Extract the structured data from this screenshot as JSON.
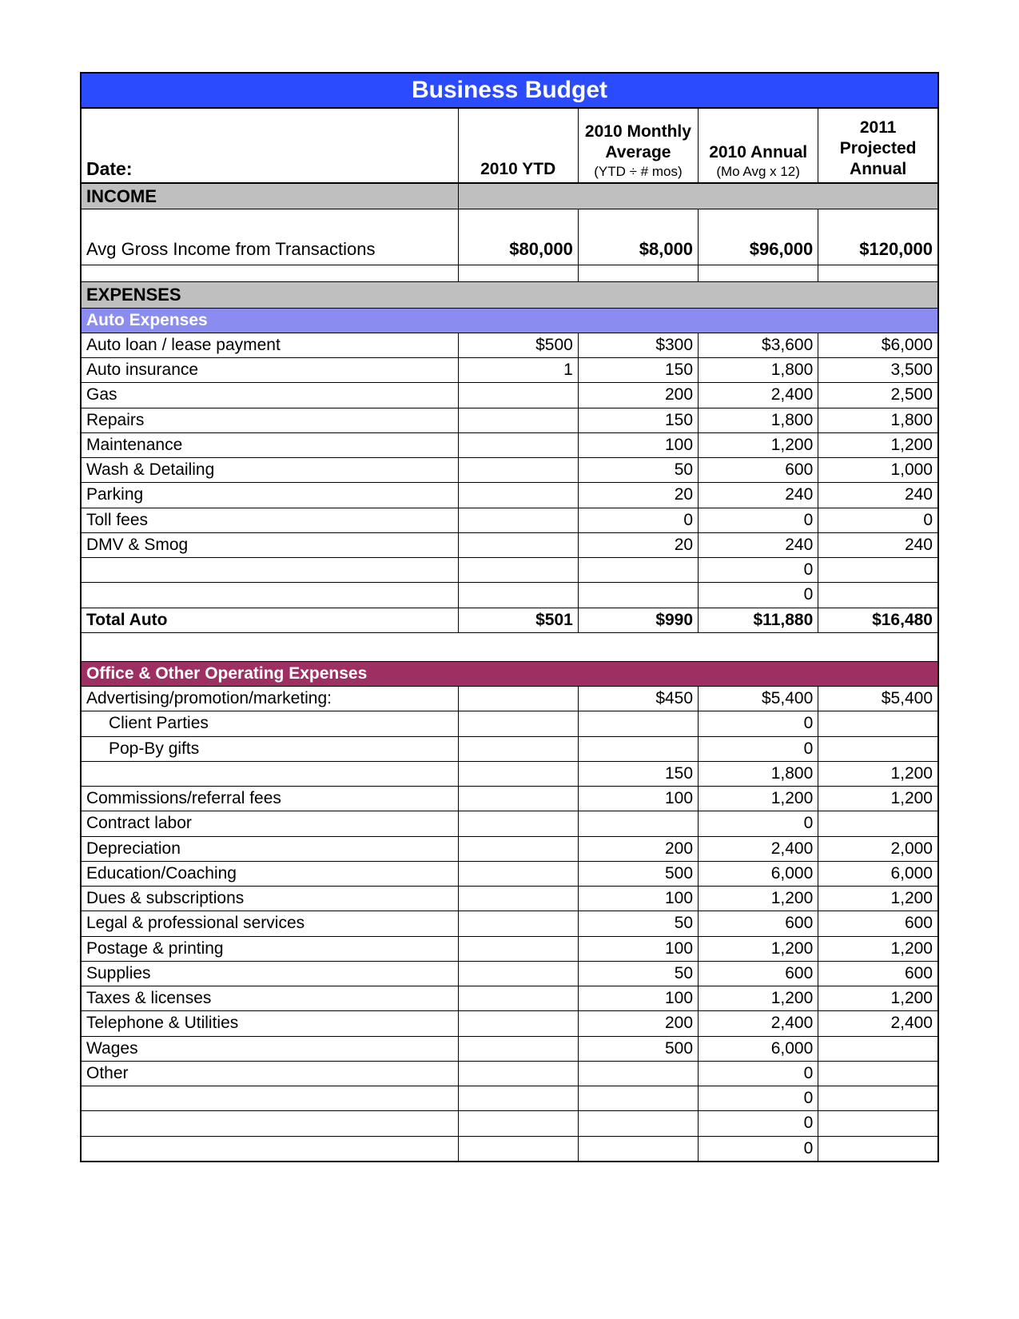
{
  "colors": {
    "title_bg": "#2b4bff",
    "title_text": "#ffffff",
    "section_grey": "#bfbfbf",
    "section_blue": "#8b8cf0",
    "section_maroon": "#9d2f62",
    "border": "#000000",
    "page_bg": "#ffffff"
  },
  "title": "Business Budget",
  "headers": {
    "date": "Date:",
    "col1": "2010 YTD",
    "col2_main": "2010 Monthly Average",
    "col2_sub": "(YTD ÷ # mos)",
    "col3_main": "2010 Annual",
    "col3_sub": "(Mo Avg x 12)",
    "col4": "2011 Projected Annual"
  },
  "income": {
    "section_label": "INCOME",
    "row_label": "Avg Gross Income from Transactions",
    "values": [
      "$80,000",
      "$8,000",
      "$96,000",
      "$120,000"
    ]
  },
  "expenses": {
    "section_label": "EXPENSES",
    "auto": {
      "section_label": "Auto Expenses",
      "rows": [
        {
          "label": "Auto loan / lease payment",
          "v": [
            "$500",
            "$300",
            "$3,600",
            "$6,000"
          ]
        },
        {
          "label": "Auto insurance",
          "v": [
            "1",
            "150",
            "1,800",
            "3,500"
          ]
        },
        {
          "label": "Gas",
          "v": [
            "",
            "200",
            "2,400",
            "2,500"
          ]
        },
        {
          "label": "Repairs",
          "v": [
            "",
            "150",
            "1,800",
            "1,800"
          ]
        },
        {
          "label": "Maintenance",
          "v": [
            "",
            "100",
            "1,200",
            "1,200"
          ]
        },
        {
          "label": "Wash & Detailing",
          "v": [
            "",
            "50",
            "600",
            "1,000"
          ]
        },
        {
          "label": "Parking",
          "v": [
            "",
            "20",
            "240",
            "240"
          ]
        },
        {
          "label": "Toll fees",
          "v": [
            "",
            "0",
            "0",
            "0"
          ]
        },
        {
          "label": "DMV & Smog",
          "v": [
            "",
            "20",
            "240",
            "240"
          ]
        },
        {
          "label": "",
          "v": [
            "",
            "",
            "0",
            ""
          ]
        },
        {
          "label": "",
          "v": [
            "",
            "",
            "0",
            ""
          ]
        }
      ],
      "total": {
        "label": "Total Auto",
        "v": [
          "$501",
          "$990",
          "$11,880",
          "$16,480"
        ]
      }
    },
    "office": {
      "section_label": "Office & Other Operating Expenses",
      "rows": [
        {
          "label": "Advertising/promotion/marketing:",
          "v": [
            "",
            "$450",
            "$5,400",
            "$5,400"
          ]
        },
        {
          "label": "Client Parties",
          "indent": true,
          "v": [
            "",
            "",
            "0",
            ""
          ]
        },
        {
          "label": "Pop-By gifts",
          "indent": true,
          "v": [
            "",
            "",
            "0",
            ""
          ]
        },
        {
          "label": "",
          "v": [
            "",
            "150",
            "1,800",
            "1,200"
          ]
        },
        {
          "label": "Commissions/referral fees",
          "v": [
            "",
            "100",
            "1,200",
            "1,200"
          ]
        },
        {
          "label": "Contract labor",
          "v": [
            "",
            "",
            "0",
            ""
          ]
        },
        {
          "label": "Depreciation",
          "v": [
            "",
            "200",
            "2,400",
            "2,000"
          ]
        },
        {
          "label": "Education/Coaching",
          "v": [
            "",
            "500",
            "6,000",
            "6,000"
          ]
        },
        {
          "label": "Dues & subscriptions",
          "v": [
            "",
            "100",
            "1,200",
            "1,200"
          ]
        },
        {
          "label": "Legal & professional services",
          "v": [
            "",
            "50",
            "600",
            "600"
          ]
        },
        {
          "label": "Postage & printing",
          "v": [
            "",
            "100",
            "1,200",
            "1,200"
          ]
        },
        {
          "label": "Supplies",
          "v": [
            "",
            "50",
            "600",
            "600"
          ]
        },
        {
          "label": "Taxes & licenses",
          "v": [
            "",
            "100",
            "1,200",
            "1,200"
          ]
        },
        {
          "label": "Telephone & Utilities",
          "v": [
            "",
            "200",
            "2,400",
            "2,400"
          ]
        },
        {
          "label": "Wages",
          "v": [
            "",
            "500",
            "6,000",
            ""
          ]
        },
        {
          "label": "Other",
          "v": [
            "",
            "",
            "0",
            ""
          ]
        },
        {
          "label": "",
          "v": [
            "",
            "",
            "0",
            ""
          ]
        },
        {
          "label": "",
          "v": [
            "",
            "",
            "0",
            ""
          ]
        },
        {
          "label": "",
          "v": [
            "",
            "",
            "0",
            ""
          ]
        }
      ]
    }
  }
}
